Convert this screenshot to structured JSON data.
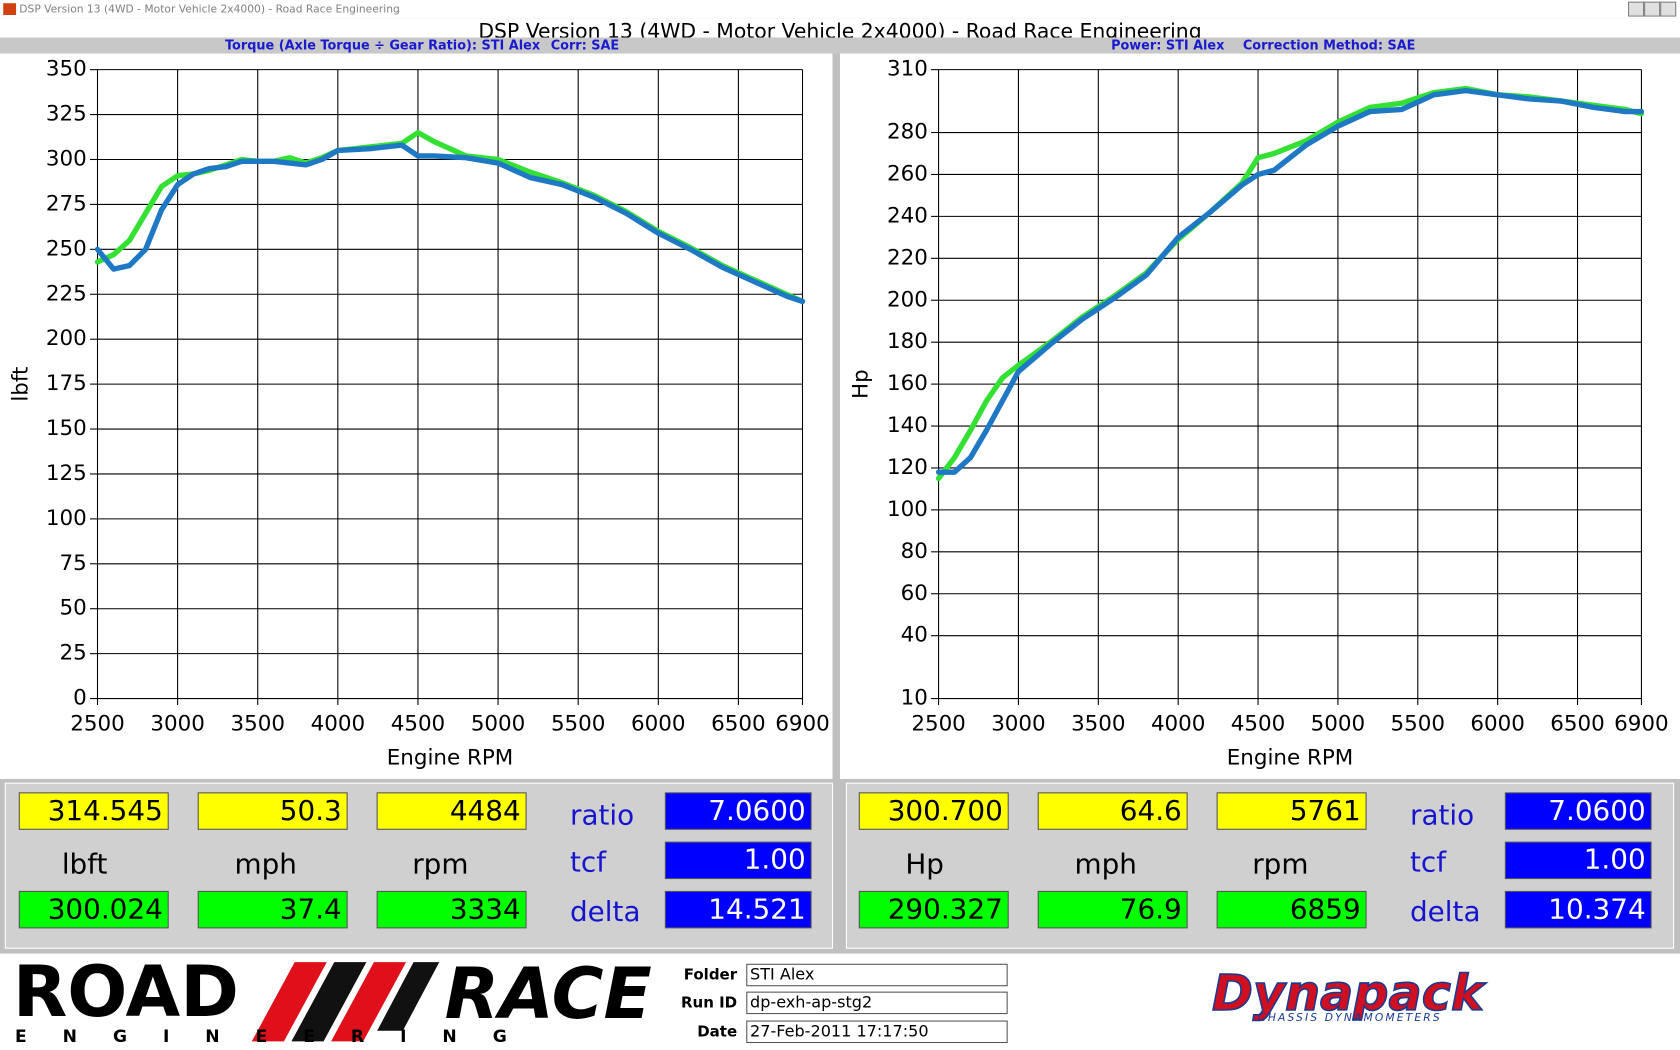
{
  "window": {
    "title": "DSP Version 13 (4WD - Motor Vehicle 2x4000) - Road Race Engineering"
  },
  "header": {
    "title": "DSP Version 13 (4WD - Motor Vehicle 2x4000) - Road Race Engineering"
  },
  "chart_data": [
    {
      "type": "line",
      "subtitle": "Torque (Axle Torque ÷ Gear Ratio): STI Alex",
      "correction": "Corr: SAE",
      "xlabel": "Engine RPM",
      "ylabel": "lbft",
      "x": [
        2500,
        2600,
        2700,
        2800,
        2900,
        3000,
        3100,
        3200,
        3300,
        3400,
        3500,
        3600,
        3700,
        3800,
        3900,
        4000,
        4200,
        4400,
        4500,
        4600,
        4800,
        5000,
        5200,
        5400,
        5600,
        5800,
        6000,
        6200,
        6400,
        6600,
        6800,
        6900
      ],
      "series": [
        {
          "color": "#33e033",
          "values": [
            243,
            247,
            255,
            270,
            285,
            291,
            292,
            294,
            297,
            300,
            299,
            299,
            301,
            298,
            301,
            305,
            307,
            309,
            315,
            310,
            302,
            300,
            293,
            287,
            280,
            271,
            260,
            251,
            241,
            233,
            225,
            221
          ]
        },
        {
          "color": "#1f78c4",
          "values": [
            250,
            239,
            241,
            250,
            272,
            286,
            292,
            295,
            296,
            299,
            299,
            299,
            298,
            297,
            300,
            305,
            306,
            308,
            302,
            302,
            301,
            298,
            290,
            286,
            279,
            270,
            259,
            250,
            240,
            232,
            224,
            221
          ]
        }
      ],
      "xlim": [
        2500,
        6900
      ],
      "xticks": [
        2500,
        3000,
        3500,
        4000,
        4500,
        5000,
        5500,
        6000,
        6500,
        6900
      ],
      "ylim": [
        0,
        350
      ],
      "yticks": [
        0,
        25,
        50,
        75,
        100,
        125,
        150,
        175,
        200,
        225,
        250,
        275,
        300,
        325,
        350
      ],
      "grid": true
    },
    {
      "type": "line",
      "subtitle": "Power: STI Alex",
      "correction": "Correction Method: SAE",
      "xlabel": "Engine RPM",
      "ylabel": "Hp",
      "x": [
        2500,
        2600,
        2700,
        2800,
        2900,
        3000,
        3200,
        3400,
        3600,
        3800,
        4000,
        4200,
        4400,
        4500,
        4600,
        4800,
        5000,
        5200,
        5400,
        5600,
        5800,
        6000,
        6200,
        6400,
        6600,
        6800,
        6900
      ],
      "series": [
        {
          "color": "#33e033",
          "values": [
            115,
            125,
            138,
            152,
            163,
            169,
            180,
            192,
            202,
            213,
            229,
            242,
            256,
            268,
            270,
            276,
            285,
            292,
            294,
            299,
            301,
            298,
            297,
            295,
            293,
            291,
            289
          ]
        },
        {
          "color": "#1f78c4",
          "values": [
            118,
            118,
            125,
            138,
            152,
            166,
            179,
            191,
            201,
            212,
            230,
            242,
            255,
            260,
            262,
            274,
            283,
            290,
            291,
            298,
            300,
            298,
            296,
            295,
            292,
            290,
            290
          ]
        }
      ],
      "xlim": [
        2500,
        6900
      ],
      "xticks": [
        2500,
        3000,
        3500,
        4000,
        4500,
        5000,
        5500,
        6000,
        6500,
        6900
      ],
      "ylim": [
        10,
        310
      ],
      "yticks": [
        10,
        40,
        60,
        80,
        100,
        120,
        140,
        160,
        180,
        200,
        220,
        240,
        260,
        280,
        310
      ],
      "grid": true
    }
  ],
  "panels": [
    {
      "top": [
        "314.545",
        "50.3",
        "4484"
      ],
      "units": [
        "lbft",
        "mph",
        "rpm"
      ],
      "bottom": [
        "300.024",
        "37.4",
        "3334"
      ],
      "labels": [
        "ratio",
        "tcf",
        "delta"
      ],
      "settings": [
        "7.0600",
        "1.00",
        "14.521"
      ]
    },
    {
      "top": [
        "300.700",
        "64.6",
        "5761"
      ],
      "units": [
        "Hp",
        "mph",
        "rpm"
      ],
      "bottom": [
        "290.327",
        "76.9",
        "6859"
      ],
      "labels": [
        "ratio",
        "tcf",
        "delta"
      ],
      "settings": [
        "7.0600",
        "1.00",
        "10.374"
      ]
    }
  ],
  "footer": {
    "logo_left": "ROAD",
    "logo_right": "RACE",
    "logo_sub": "E N G I N E E R I N G",
    "fields": [
      {
        "label": "Folder",
        "value": "STI Alex"
      },
      {
        "label": "Run ID",
        "value": "dp-exh-ap-stg2"
      },
      {
        "label": "Date",
        "value": "27-Feb-2011 17:17:50"
      }
    ],
    "brand": "Dynapack",
    "brand_sub": "CHASSIS DYNAMOMETERS"
  }
}
